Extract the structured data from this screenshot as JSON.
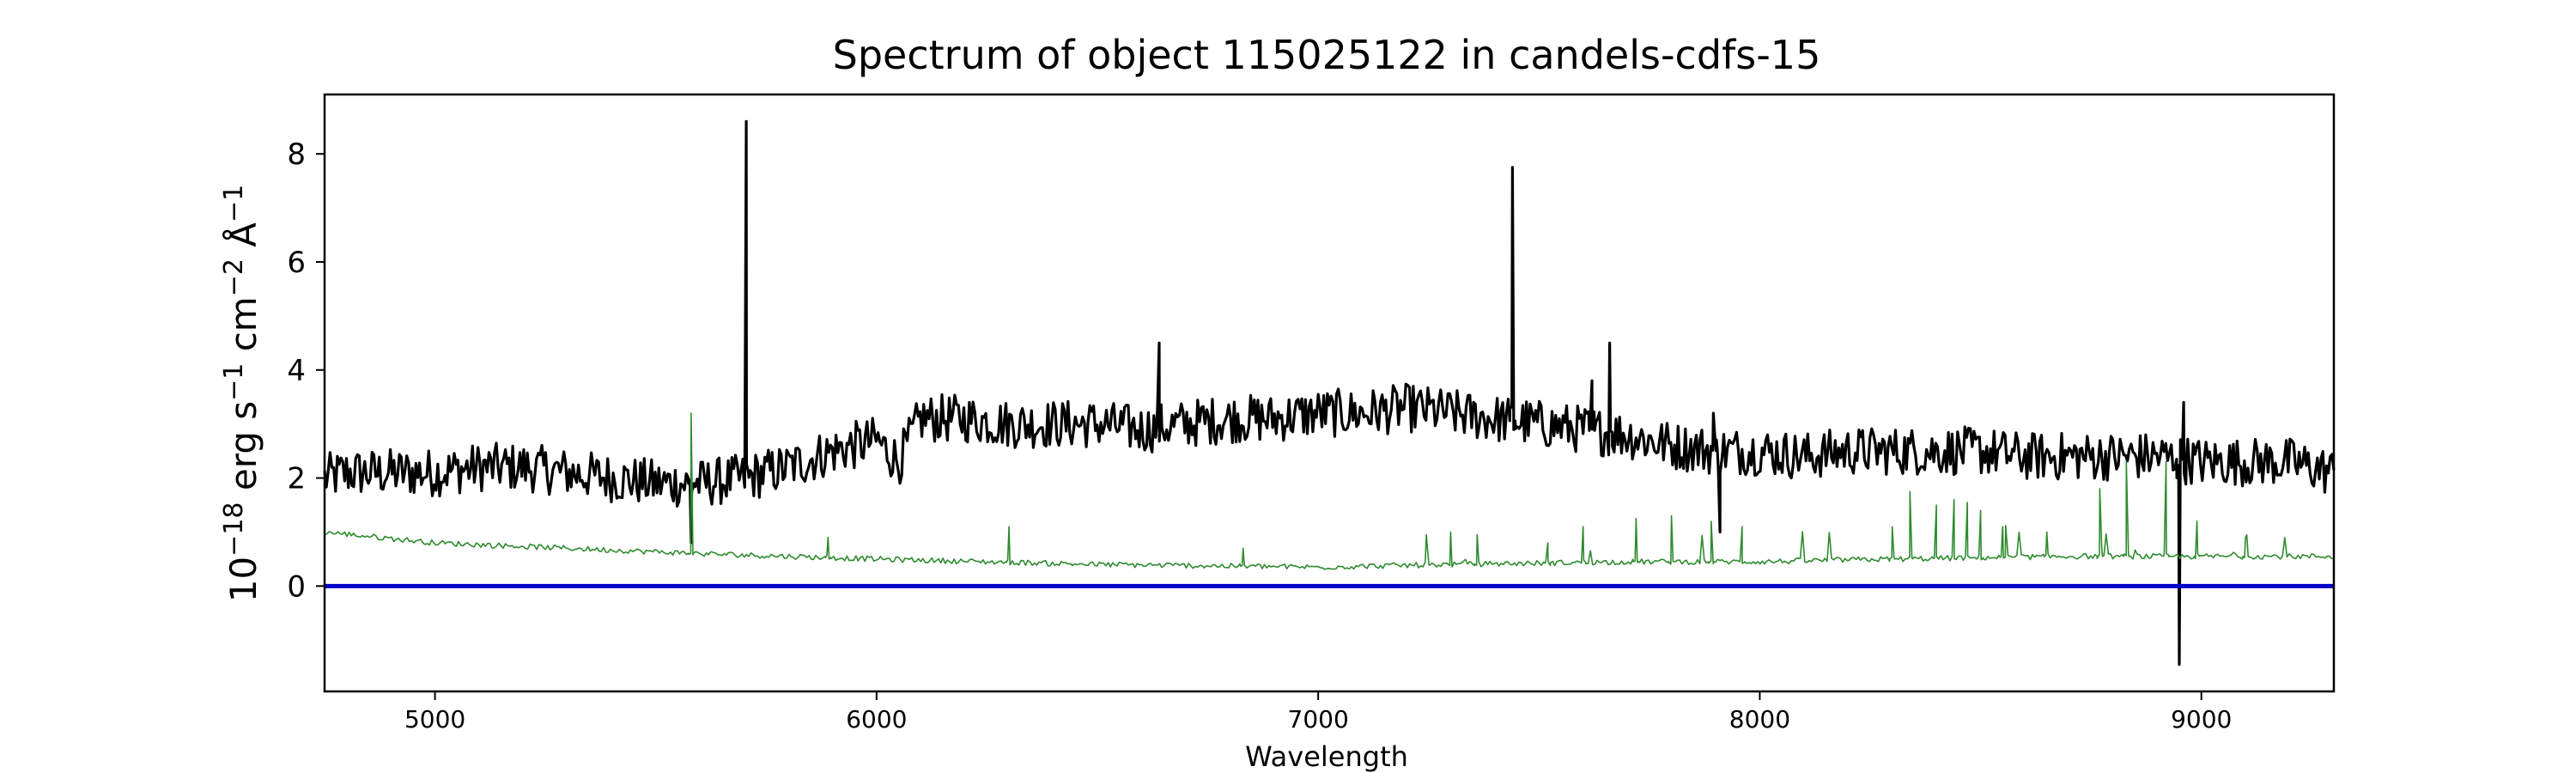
{
  "chart_data": {
    "type": "line",
    "title": "Spectrum of object 115025122 in candels-cdfs-15",
    "xlabel": "Wavelength",
    "ylabel_parts": [
      "10",
      "−18",
      " erg s",
      "−1",
      " cm",
      "−2",
      " Å",
      "−1"
    ],
    "xlim": [
      4750,
      9300
    ],
    "ylim": [
      -1.95,
      9.1
    ],
    "x_ticks": [
      5000,
      6000,
      7000,
      8000,
      9000
    ],
    "y_ticks": [
      0,
      2,
      4,
      6,
      8
    ],
    "grid": false,
    "legend": "none",
    "series": [
      {
        "role": "flux",
        "color": "#000000",
        "x_range": [
          4750,
          9300
        ],
        "base": [
          [
            4750,
            2.0
          ],
          [
            4800,
            2.1
          ],
          [
            4900,
            2.1
          ],
          [
            5000,
            2.1
          ],
          [
            5100,
            2.2
          ],
          [
            5200,
            2.2
          ],
          [
            5300,
            2.1
          ],
          [
            5400,
            2.0
          ],
          [
            5500,
            1.9
          ],
          [
            5600,
            1.9
          ],
          [
            5700,
            2.0
          ],
          [
            5800,
            2.2
          ],
          [
            5900,
            2.5
          ],
          [
            6000,
            2.7
          ],
          [
            6050,
            2.3
          ],
          [
            6100,
            3.1
          ],
          [
            6200,
            3.1
          ],
          [
            6300,
            3.0
          ],
          [
            6400,
            3.0
          ],
          [
            6500,
            3.0
          ],
          [
            6600,
            2.9
          ],
          [
            6700,
            3.0
          ],
          [
            6800,
            3.1
          ],
          [
            6900,
            3.1
          ],
          [
            7000,
            3.2
          ],
          [
            7100,
            3.2
          ],
          [
            7200,
            3.3
          ],
          [
            7300,
            3.2
          ],
          [
            7400,
            3.1
          ],
          [
            7500,
            3.0
          ],
          [
            7600,
            2.9
          ],
          [
            7700,
            2.8
          ],
          [
            7800,
            2.6
          ],
          [
            7900,
            2.5
          ],
          [
            8000,
            2.5
          ],
          [
            8100,
            2.4
          ],
          [
            8200,
            2.5
          ],
          [
            8300,
            2.5
          ],
          [
            8400,
            2.5
          ],
          [
            8500,
            2.5
          ],
          [
            8600,
            2.4
          ],
          [
            8700,
            2.4
          ],
          [
            8800,
            2.4
          ],
          [
            8900,
            2.4
          ],
          [
            9000,
            2.3
          ],
          [
            9100,
            2.3
          ],
          [
            9200,
            2.3
          ],
          [
            9300,
            2.1
          ]
        ],
        "noise": 0.45,
        "features": [
          [
            5705,
            8.6
          ],
          [
            7440,
            7.75
          ],
          [
            6640,
            4.5
          ],
          [
            7660,
            4.5
          ],
          [
            7620,
            3.8
          ],
          [
            8950,
            -1.45
          ],
          [
            5580,
            0.8
          ],
          [
            7910,
            1.0
          ],
          [
            7895,
            3.2
          ],
          [
            8960,
            3.4
          ]
        ]
      },
      {
        "role": "noise",
        "color": "#2e8b2e",
        "x_range": [
          4750,
          9300
        ],
        "base": [
          [
            4750,
            1.0
          ],
          [
            5000,
            0.8
          ],
          [
            5300,
            0.7
          ],
          [
            5600,
            0.6
          ],
          [
            6000,
            0.5
          ],
          [
            6500,
            0.4
          ],
          [
            7000,
            0.35
          ],
          [
            7300,
            0.4
          ],
          [
            7700,
            0.45
          ],
          [
            8000,
            0.45
          ],
          [
            8300,
            0.5
          ],
          [
            8700,
            0.55
          ],
          [
            9000,
            0.55
          ],
          [
            9300,
            0.55
          ]
        ],
        "noise": 0.05,
        "features": [
          [
            5580,
            3.2
          ],
          [
            5890,
            0.9
          ],
          [
            6300,
            1.1
          ],
          [
            6830,
            0.7
          ],
          [
            7245,
            0.95
          ],
          [
            7300,
            1.0
          ],
          [
            7360,
            0.95
          ],
          [
            7520,
            0.8
          ],
          [
            7600,
            1.1
          ],
          [
            7720,
            1.25
          ],
          [
            7800,
            1.3
          ],
          [
            7890,
            1.2
          ],
          [
            7960,
            1.1
          ],
          [
            8300,
            1.1
          ],
          [
            8340,
            1.75
          ],
          [
            8400,
            1.5
          ],
          [
            8440,
            1.6
          ],
          [
            8470,
            1.55
          ],
          [
            8500,
            1.4
          ],
          [
            8550,
            1.1
          ],
          [
            8650,
            1.0
          ],
          [
            8770,
            1.8
          ],
          [
            8830,
            2.3
          ],
          [
            8920,
            2.3
          ],
          [
            8990,
            1.2
          ],
          [
            9100,
            0.9
          ]
        ]
      },
      {
        "role": "zero",
        "color": "#0000cc",
        "points": [
          [
            4750,
            0
          ],
          [
            9300,
            0
          ]
        ]
      }
    ]
  }
}
